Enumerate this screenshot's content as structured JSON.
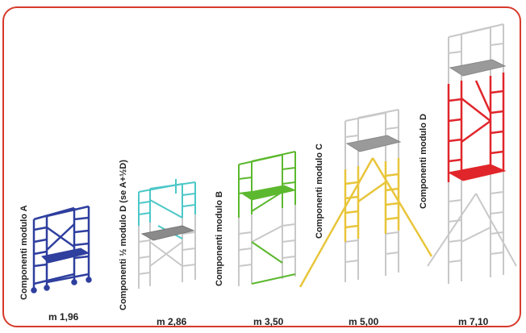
{
  "modules": [
    {
      "label": "Componenti modulo A",
      "height": "m 1,96",
      "color": "#2e3f9e"
    },
    {
      "label": "Componenti ½ modulo D (se A+½D)",
      "height": "m 2,86",
      "color": "#4cc7c7"
    },
    {
      "label": "Componenti modulo B",
      "height": "m 3,50",
      "color": "#5cb82e"
    },
    {
      "label": "Componenti modulo C",
      "height": "m 5,00",
      "color": "#e8c53a"
    },
    {
      "label": "Componenti modulo D",
      "height": "m 7,10",
      "color": "#e0262b"
    }
  ],
  "colors": {
    "border": "#d63a2c",
    "neutral": "#c8c8c8",
    "platform": "#8a8a8a"
  }
}
